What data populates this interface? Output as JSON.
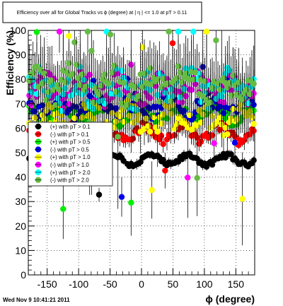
{
  "timestamp": "Wed Nov  9 10:41:21 2011",
  "colors": {
    "black": "#000000",
    "red": "#ff0000",
    "green": "#00ee00",
    "blue": "#0000ee",
    "yellow": "#ffff00",
    "magenta": "#ff00ff",
    "cyan": "#00ffff",
    "olive": "#66bb44"
  },
  "chart_data": {
    "type": "scatter",
    "title": "Efficiency over all for Global Tracks vs ϕ (degree) at |  η | <= 1.0 at pT > 0.11",
    "xlabel": "ϕ (degree)",
    "ylabel": "Efficiency (%)",
    "xlim": [
      -180,
      180
    ],
    "ylim": [
      0,
      100
    ],
    "xticks": [
      "-150",
      "-100",
      "-50",
      "0",
      "50",
      "100",
      "150"
    ],
    "xtick_values": [
      -150,
      -100,
      -50,
      0,
      50,
      100,
      150
    ],
    "yticks": [
      "0",
      "10",
      "20",
      "30",
      "40",
      "50",
      "60",
      "70",
      "80",
      "90",
      "100"
    ],
    "ytick_values": [
      0,
      10,
      20,
      30,
      40,
      50,
      60,
      70,
      80,
      90,
      100
    ],
    "grid": true,
    "error_bars": true,
    "legend_position": "left-middle",
    "n_points": 120,
    "series": [
      {
        "name": "(+) with pT > 0.1",
        "color": "black",
        "base": 47,
        "amp": 2,
        "noise": 1,
        "err": 1.5,
        "spike": 0.02
      },
      {
        "name": "(-) with pT > 0.1",
        "color": "red",
        "base": 58,
        "amp": 3,
        "noise": 2,
        "err": 3,
        "spike": 0.02
      },
      {
        "name": "(+) with pT > 0.5",
        "color": "green",
        "base": 66,
        "amp": 3,
        "noise": 2.5,
        "err": 5,
        "spike": 0.04
      },
      {
        "name": "(-) with pT > 0.5",
        "color": "blue",
        "base": 69,
        "amp": 3,
        "noise": 3,
        "err": 6,
        "spike": 0.04
      },
      {
        "name": "(+) with pT > 1.0",
        "color": "yellow",
        "base": 64,
        "amp": 3,
        "noise": 5,
        "err": 7,
        "spike": 0.05
      },
      {
        "name": "(-) with pT > 1.0",
        "color": "magenta",
        "base": 76,
        "amp": 3,
        "noise": 5,
        "err": 8,
        "spike": 0.06
      },
      {
        "name": "(+) with pT > 2.0",
        "color": "cyan",
        "base": 76,
        "amp": 4,
        "noise": 6,
        "err": 10,
        "spike": 0.08
      },
      {
        "name": "(-) with pT > 2.0",
        "color": "olive",
        "base": 78,
        "amp": 4,
        "noise": 6,
        "err": 10,
        "spike": 0.09
      }
    ]
  }
}
